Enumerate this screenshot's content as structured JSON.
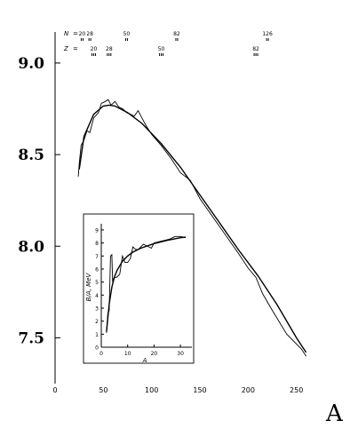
{
  "chart_data": [
    {
      "type": "line",
      "label_letter": "A",
      "xlabel": "",
      "ylabel": "",
      "xlim": [
        0,
        265
      ],
      "ylim": [
        7.25,
        9.15
      ],
      "x_ticks": [
        0,
        50,
        100,
        150,
        200,
        250
      ],
      "x_tick_labels": [
        "0",
        "50",
        "100",
        "150",
        "200",
        "250"
      ],
      "y_ticks": [
        7.5,
        8.0,
        8.5,
        9.0
      ],
      "y_tick_labels": [
        "7.5",
        "8.0",
        "8.5",
        "9.0"
      ],
      "series": [
        {
          "x": [
            25,
            30,
            40,
            50,
            56,
            62,
            75,
            90,
            110,
            130,
            150,
            170,
            190,
            210,
            230,
            250,
            260
          ],
          "y": [
            8.42,
            8.6,
            8.72,
            8.765,
            8.77,
            8.765,
            8.73,
            8.67,
            8.56,
            8.43,
            8.28,
            8.13,
            7.98,
            7.84,
            7.68,
            7.5,
            7.42
          ]
        },
        {
          "x": [
            24,
            25,
            27,
            30,
            33,
            36,
            40,
            45,
            48,
            52,
            55,
            58,
            62,
            66,
            70,
            74,
            78,
            82,
            86,
            90,
            94,
            100,
            110,
            120,
            130,
            140,
            150,
            170,
            190,
            200,
            208,
            215,
            225,
            240,
            255,
            260
          ],
          "y": [
            8.38,
            8.45,
            8.55,
            8.58,
            8.63,
            8.62,
            8.7,
            8.73,
            8.78,
            8.79,
            8.8,
            8.77,
            8.79,
            8.76,
            8.75,
            8.73,
            8.72,
            8.71,
            8.74,
            8.7,
            8.66,
            8.61,
            8.55,
            8.48,
            8.4,
            8.36,
            8.26,
            8.11,
            7.96,
            7.88,
            7.83,
            7.74,
            7.65,
            7.52,
            7.44,
            7.4
          ]
        }
      ],
      "annotations": {
        "N_label": "N",
        "Z_label": "Z",
        "equals": "=",
        "magic_N": [
          "20",
          "28",
          "50",
          "82",
          "126"
        ],
        "magic_N_x": [
          28,
          36,
          74,
          126,
          220
        ],
        "magic_Z": [
          "20",
          "28",
          "50",
          "82"
        ],
        "magic_Z_x": [
          40,
          56,
          110,
          208
        ]
      }
    },
    {
      "type": "line",
      "xlabel": "A",
      "ylabel": "B/A, MeV",
      "xlim": [
        0,
        33
      ],
      "ylim": [
        0,
        9.2
      ],
      "x_ticks": [
        0,
        10,
        20,
        30
      ],
      "x_tick_labels": [
        "0",
        "10",
        "20",
        "30"
      ],
      "y_ticks": [
        0,
        1,
        2,
        3,
        4,
        5,
        6,
        7,
        8,
        9
      ],
      "y_tick_labels": [
        "0",
        "1",
        "2",
        "3",
        "4",
        "5",
        "6",
        "7",
        "8",
        "9"
      ],
      "series": [
        {
          "x": [
            2,
            3,
            4,
            5,
            6,
            8,
            10,
            12,
            15,
            20,
            25,
            30,
            32
          ],
          "y": [
            1.2,
            3.3,
            4.6,
            5.4,
            5.9,
            6.6,
            7.0,
            7.3,
            7.6,
            7.95,
            8.2,
            8.4,
            8.45
          ]
        },
        {
          "x": [
            2,
            2.5,
            3,
            3.5,
            4,
            4.3,
            4.7,
            6,
            7,
            8,
            9,
            10,
            11,
            12,
            13,
            14,
            16,
            18,
            19,
            20,
            22,
            24,
            26,
            28,
            30,
            32
          ],
          "y": [
            1.1,
            2.6,
            2.8,
            7.0,
            7.1,
            5.0,
            5.3,
            5.4,
            5.6,
            7.0,
            6.5,
            6.5,
            6.8,
            7.7,
            7.5,
            7.5,
            7.9,
            7.7,
            7.6,
            8.0,
            8.1,
            8.2,
            8.3,
            8.5,
            8.5,
            8.4
          ]
        }
      ]
    }
  ]
}
